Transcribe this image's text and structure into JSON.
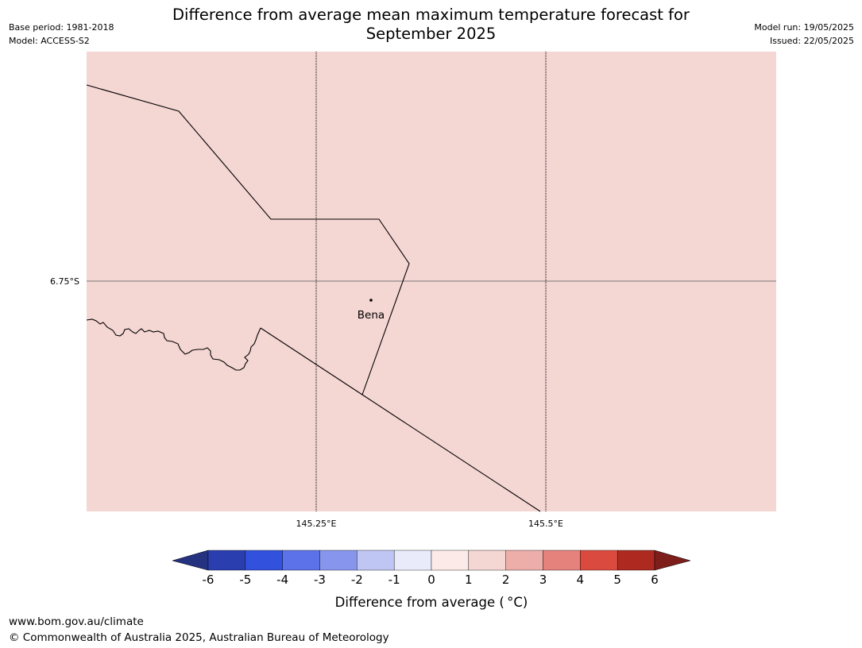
{
  "header": {
    "title_line1": "Difference from average mean maximum temperature forecast for",
    "title_line2": "September 2025",
    "base_period": "Base period: 1981-2018",
    "model": "Model: ACCESS-S2",
    "model_run": "Model run: 19/05/2025",
    "issued": "Issued: 22/05/2025"
  },
  "map": {
    "fill_color": "#f4d6d3",
    "latitude_labels": [
      "6.75°S"
    ],
    "longitude_labels": [
      "145.25°E",
      "145.5°E"
    ],
    "place": {
      "name": "Bena"
    }
  },
  "colorbar": {
    "label": "Difference from average ( °C)",
    "ticks": [
      "-6",
      "-5",
      "-4",
      "-3",
      "-2",
      "-1",
      "0",
      "1",
      "2",
      "3",
      "4",
      "5",
      "6"
    ],
    "colors": {
      "below_min": "#24327f",
      "bins": [
        "#2a3eb0",
        "#3252de",
        "#5b72e8",
        "#8796ec",
        "#c0c6f4",
        "#e9ebfb",
        "#fbeae8",
        "#f4d6d3",
        "#edaeaa",
        "#e5827c",
        "#db4a3e",
        "#ae2a21"
      ],
      "above_max": "#7e1e1a"
    }
  },
  "footer": {
    "url": "www.bom.gov.au/climate",
    "copyright": "© Commonwealth of Australia 2025, Australian Bureau of Meteorology"
  }
}
